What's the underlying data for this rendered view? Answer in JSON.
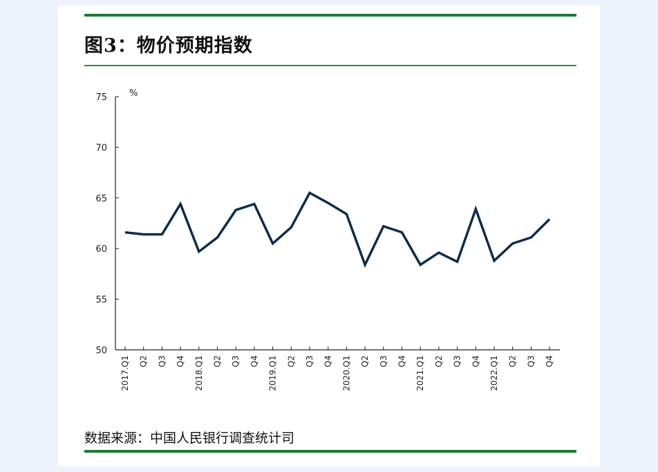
{
  "header": {
    "title": "图3：物价预期指数"
  },
  "footer": {
    "source": "数据来源：中国人民银行调查统计司"
  },
  "colors": {
    "accent": "#1a7a34",
    "line": "#0d2b4a"
  },
  "chart_data": {
    "type": "line",
    "title": "图3：物价预期指数",
    "ylabel": "%",
    "ylim": [
      50,
      75
    ],
    "yticks": [
      50,
      55,
      60,
      65,
      70,
      75
    ],
    "categories": [
      "2017.Q1",
      "Q2",
      "Q3",
      "Q4",
      "2018.Q1",
      "Q2",
      "Q3",
      "Q4",
      "2019.Q1",
      "Q2",
      "Q3",
      "Q4",
      "2020.Q1",
      "Q2",
      "Q3",
      "Q4",
      "2021.Q1",
      "Q2",
      "Q3",
      "Q4",
      "2022.Q1",
      "Q2",
      "Q3",
      "Q4"
    ],
    "series": [
      {
        "values": [
          61.6,
          61.4,
          61.4,
          64.4,
          59.7,
          61.1,
          63.8,
          64.4,
          60.5,
          62.1,
          65.5,
          64.5,
          63.4,
          58.4,
          62.2,
          61.6,
          58.4,
          59.6,
          58.7,
          63.9,
          58.8,
          60.5,
          61.1,
          62.9
        ]
      }
    ],
    "grid": false,
    "legend": "none"
  }
}
